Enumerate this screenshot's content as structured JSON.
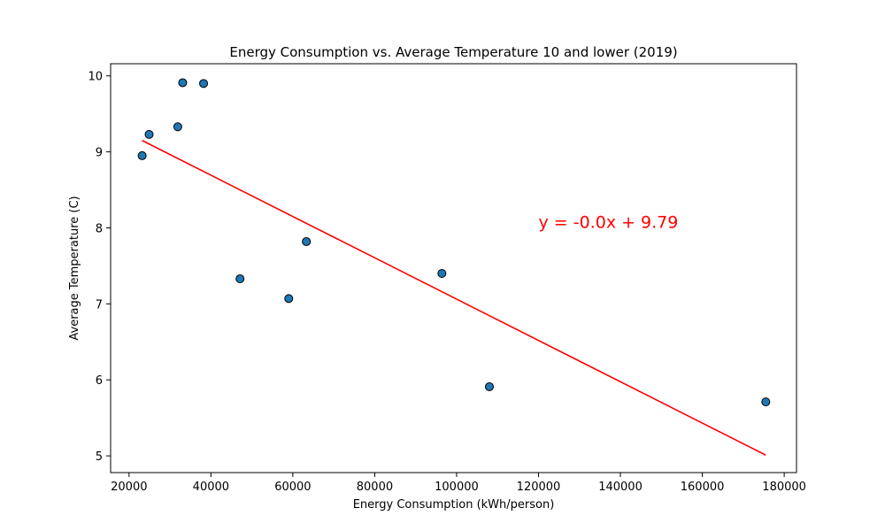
{
  "chart_data": {
    "type": "scatter",
    "title": "Energy Consumption vs. Average Temperature 10 and lower (2019)",
    "xlabel": "Energy Consumption (kWh/person)",
    "ylabel": "Average Temperature (C)",
    "xlim": [
      15500,
      183000
    ],
    "ylim": [
      4.78,
      10.16
    ],
    "xticks": [
      20000,
      40000,
      60000,
      80000,
      100000,
      120000,
      140000,
      160000,
      180000
    ],
    "yticks": [
      5,
      6,
      7,
      8,
      9,
      10
    ],
    "grid": false,
    "legend": "none",
    "series": [
      {
        "x": [
          23200,
          24900,
          31900,
          33100,
          38200,
          47100,
          59000,
          63300,
          96400,
          108000,
          175500
        ],
        "y": [
          8.95,
          9.23,
          9.33,
          9.91,
          9.9,
          7.33,
          7.07,
          7.82,
          7.4,
          5.91,
          5.71
        ],
        "color": "#1f77b4",
        "edgecolor": "#000000"
      }
    ],
    "regression": {
      "color": "#ff0000",
      "x": [
        23200,
        175500
      ],
      "y": [
        9.15,
        5.01
      ],
      "annotation": "y = -0.0x + 9.79",
      "annotation_at": [
        120000,
        8.0
      ]
    }
  }
}
